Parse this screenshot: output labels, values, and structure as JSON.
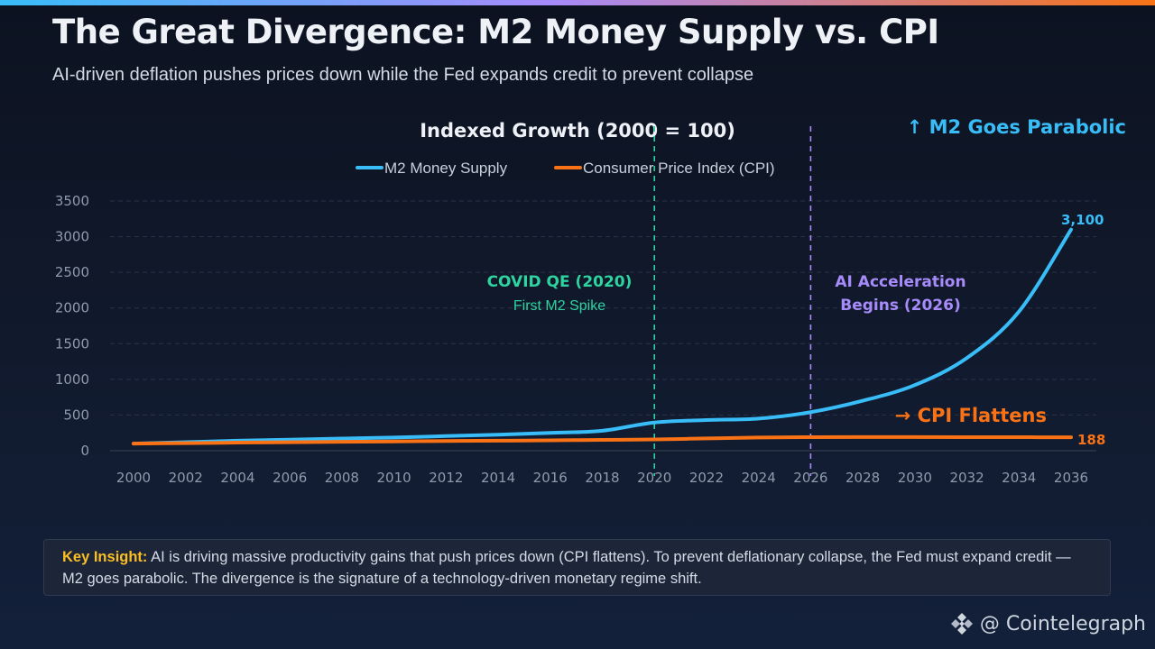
{
  "header": {
    "title": "The Great Divergence: M2 Money Supply vs. CPI",
    "subtitle": "AI-driven deflation pushes prices down while the Fed expands credit to prevent collapse"
  },
  "colors": {
    "m2": "#38bdf8",
    "cpi": "#f97316",
    "covid": "#2dd4a0",
    "ai": "#a78bfa",
    "insight_label": "#fbbf24",
    "background": "#0c1220"
  },
  "chart_data": {
    "type": "line",
    "title": "Indexed Growth (2000 = 100)",
    "xlabel": "",
    "ylabel": "",
    "xlim": [
      2000,
      2036
    ],
    "ylim": [
      0,
      3500
    ],
    "grid": true,
    "legend_position": "top-center",
    "x_ticks": [
      "2000",
      "2002",
      "2004",
      "2006",
      "2008",
      "2010",
      "2012",
      "2014",
      "2016",
      "2018",
      "2020",
      "2022",
      "2024",
      "2026",
      "2028",
      "2030",
      "2032",
      "2034",
      "2036"
    ],
    "y_ticks": [
      "0",
      "500",
      "1000",
      "1500",
      "2000",
      "2500",
      "3000",
      "3500"
    ],
    "x": [
      2000,
      2002,
      2004,
      2006,
      2008,
      2010,
      2012,
      2014,
      2016,
      2018,
      2020,
      2022,
      2024,
      2026,
      2028,
      2030,
      2032,
      2034,
      2036
    ],
    "series": [
      {
        "name": "M2 Money Supply",
        "key": "m2",
        "values": [
          100,
          120,
          140,
          155,
          170,
          185,
          205,
          225,
          250,
          280,
          395,
          430,
          450,
          540,
          700,
          920,
          1300,
          1950,
          3100
        ],
        "end_label": "3,100"
      },
      {
        "name": "Consumer Price Index (CPI)",
        "key": "cpi",
        "values": [
          100,
          106,
          113,
          119,
          124,
          130,
          136,
          140,
          145,
          152,
          158,
          172,
          185,
          190,
          191,
          191,
          190,
          189,
          188
        ],
        "end_label": "188"
      }
    ],
    "reference_lines": [
      {
        "x": 2020,
        "key": "covid",
        "title": "COVID QE (2020)",
        "subtitle": "First M2 Spike"
      },
      {
        "x": 2026,
        "key": "ai",
        "title_lines": [
          "AI Acceleration",
          "Begins (2026)"
        ]
      }
    ],
    "annotations": [
      {
        "key": "m2",
        "text": "↑ M2 Goes Parabolic"
      },
      {
        "key": "cpi",
        "text": "→ CPI Flattens"
      }
    ]
  },
  "insight": {
    "label": "Key Insight:",
    "text": " AI is driving massive productivity gains that push prices down (CPI flattens). To prevent deflationary collapse, the Fed must expand credit — M2 goes parabolic. The divergence is the signature of a technology-driven monetary regime shift."
  },
  "watermark": {
    "icon": "binance-diamond-icon",
    "text": "@ Cointelegraph"
  }
}
